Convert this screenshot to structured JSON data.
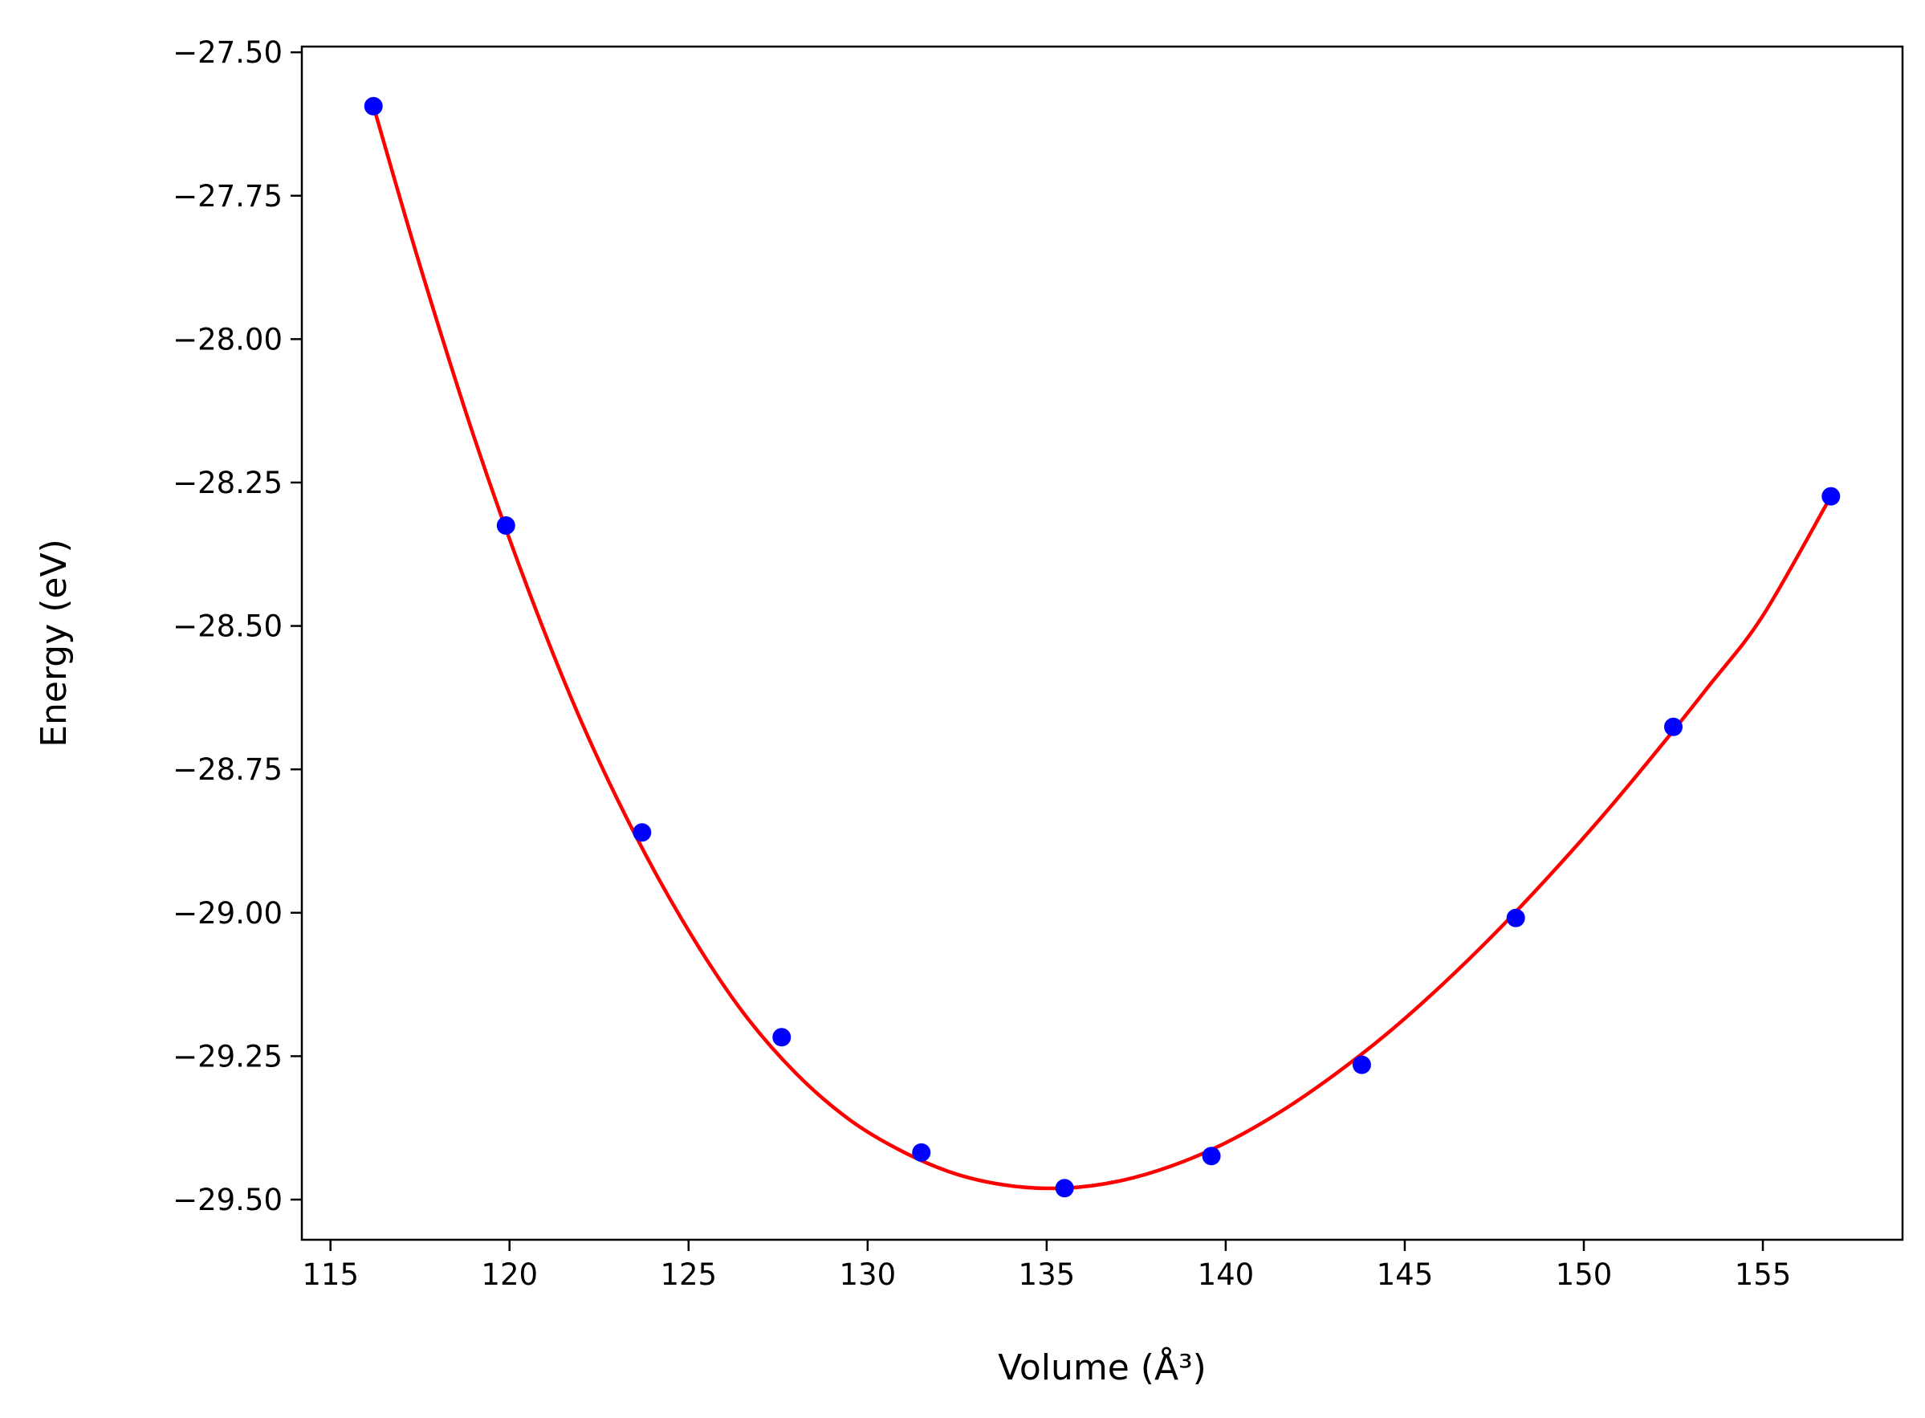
{
  "chart_data": {
    "type": "scatter",
    "title": "",
    "xlabel": "Volume (Å³)",
    "ylabel": "Energy (eV)",
    "xlim": [
      114.2,
      158.9
    ],
    "ylim": [
      -29.57,
      -27.49
    ],
    "x_ticks": [
      115,
      120,
      125,
      130,
      135,
      140,
      145,
      150,
      155
    ],
    "x_tick_labels": [
      "115",
      "120",
      "125",
      "130",
      "135",
      "140",
      "145",
      "150",
      "155"
    ],
    "y_ticks": [
      -27.5,
      -27.75,
      -28.0,
      -28.25,
      -28.5,
      -28.75,
      -29.0,
      -29.25,
      -29.5
    ],
    "y_tick_labels": [
      "−27.50",
      "−27.75",
      "−28.00",
      "−28.25",
      "−28.50",
      "−28.75",
      "−29.00",
      "−29.25",
      "−29.50"
    ],
    "grid": false,
    "legend": "none",
    "series": [
      {
        "kind": "points",
        "color": "#0000ff",
        "x": [
          116.2,
          119.9,
          123.7,
          127.6,
          131.5,
          135.5,
          139.6,
          143.8,
          148.1,
          152.5,
          156.9
        ],
        "y": [
          -27.594,
          -28.325,
          -28.86,
          -29.217,
          -29.418,
          -29.48,
          -29.424,
          -29.265,
          -29.009,
          -28.676,
          -28.274
        ]
      },
      {
        "kind": "fit-curve",
        "color": "#ff0000",
        "x": [
          116.2,
          117.5,
          119.0,
          120.5,
          122.0,
          123.5,
          125.0,
          126.5,
          128.0,
          129.5,
          131.0,
          132.5,
          134.0,
          135.5,
          137.0,
          138.5,
          140.0,
          141.5,
          143.0,
          144.5,
          146.0,
          147.5,
          149.0,
          150.5,
          152.0,
          153.5,
          155.0,
          156.9
        ],
        "y": [
          -27.594,
          -27.872,
          -28.169,
          -28.433,
          -28.666,
          -28.863,
          -29.031,
          -29.172,
          -29.28,
          -29.361,
          -29.417,
          -29.456,
          -29.476,
          -29.48,
          -29.468,
          -29.441,
          -29.401,
          -29.348,
          -29.284,
          -29.211,
          -29.128,
          -29.037,
          -28.938,
          -28.833,
          -28.721,
          -28.604,
          -28.482,
          -28.274
        ]
      }
    ]
  }
}
